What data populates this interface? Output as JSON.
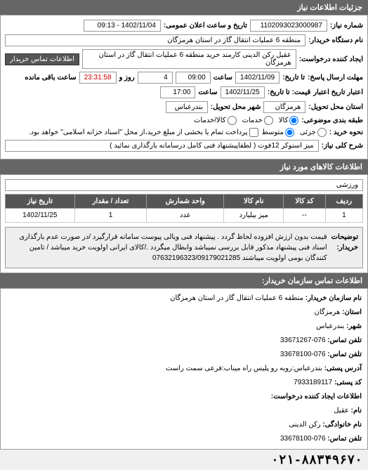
{
  "header": {
    "title": "جزئیات اطلاعات نیاز"
  },
  "request": {
    "number_label": "شماره نیاز:",
    "number": "1102093023000987",
    "announce_label": "تاریخ و ساعت اعلان عمومی:",
    "announce_value": "1402/11/04 - 09:13",
    "buyer_org_label": "نام دستگاه خریدار:",
    "buyer_org": "منطقه 6 عملیات انتقال گاز در استان هرمزگان",
    "creator_label": "ایجاد کننده درخواست:",
    "creator": "عقیل رکن الدینی کارمند خرید منطقه 6 عملیات انتقال گاز در استان هرمزگان",
    "contact_btn": "اطلاعات تماس خریدار",
    "deadline_reply_label": "مهلت ارسال پاسخ:",
    "deadline_to_label": "تا تاریخ:",
    "deadline_date": "1402/11/09",
    "time_label": "ساعت",
    "deadline_time": "09:00",
    "remaining_days": "4",
    "remaining_days_label": "روز و",
    "remaining_time": "23:31:58",
    "remaining_suffix": "ساعت باقی مانده",
    "validity_label": "اعتبار تاریخ اعتبار",
    "validity_to_label": "قیمت: تا تاریخ:",
    "validity_date": "1402/11/25",
    "validity_time": "17:00",
    "province_label": "استان محل تحویل:",
    "province": "هرمزگان",
    "city_label": "شهر محل تحویل:",
    "city": "بندرعباس",
    "budget_label": "طبقه بندی موضوعی:",
    "budget_options": {
      "kala": "کالا",
      "khadamat": "خدمات",
      "kala_khadamat": "کالا/خدمات"
    },
    "buy_method_label": "نحوه خرید :",
    "buy_method_options": {
      "partial": "جزئی",
      "medium": "متوسط"
    },
    "prepay_label": "پرداخت تمام یا بخشی از مبلغ خرید،از محل \"اسناد خزانه اسلامی\" خواهد بود.",
    "description_label": "شرح کلی نیاز:",
    "description": "میز اسنوکر 12فوت ( لطفاپیشنهاد فنی کامل درسامانه بارگذاری نمائید )"
  },
  "goods_header": "اطلاعات کالاهای مورد نیاز",
  "goods": {
    "filter": "ورزشی",
    "table": {
      "columns": [
        "ردیف",
        "کد کالا",
        "نام کالا",
        "واحد شمارش",
        "تعداد / مقدار",
        "تاریخ نیاز"
      ],
      "rows": [
        [
          "1",
          "--",
          "میز بیلیارد",
          "عدد",
          "1",
          "1402/11/25"
        ]
      ]
    }
  },
  "buyer_note": {
    "label": "توضیحات خریدار:",
    "text": "قیمت بدون ارزش افزوده لحاظ گردد . پیشنهاد فنی ویالی پیوست سامانه قرارگیرد /در صورت عدم بارگذاری اسناد فنی پیشنهاد مذکور قابل بررسی نمیباشد وابطال میگردد ./کالای ایرانی اولویت خرید میباشد / تامین کنندگان بومی اولویت میباشند 07632196323/09179021285"
  },
  "contact_header": "اطلاعات تماس سازمان خریدار:",
  "contact": {
    "org_name_label": "نام سازمان خریدار:",
    "org_name": "منطقه 6 عملیات انتقال گاز در استان هرمزگان",
    "province_label": "استان:",
    "province": "هرمزگان",
    "city_label": "شهر:",
    "city": "بندرعباس",
    "phone_label": "تلفن تماس:",
    "phone": "076-33671267",
    "fax_label": "تلفن تماس:",
    "fax": "076-33678100",
    "postal_label": "آدرس پستی:",
    "postal": "بندرعباس:روبه رو پلیس راه میناب:فرعی سمت راست",
    "postcode_label": "کد پستی:",
    "postcode": "7933189117",
    "creator_section": "اطلاعات ایجاد کننده درخواست:",
    "name_label": "نام:",
    "name": "عقیل",
    "lastname_label": "نام خانوادگی:",
    "lastname": "رکن الدینی",
    "creator_phone_label": "تلفن تماس:",
    "creator_phone": "076-33678100"
  },
  "phone_display": "۰۲۱-۸۸۳۴۹۶۷۰"
}
